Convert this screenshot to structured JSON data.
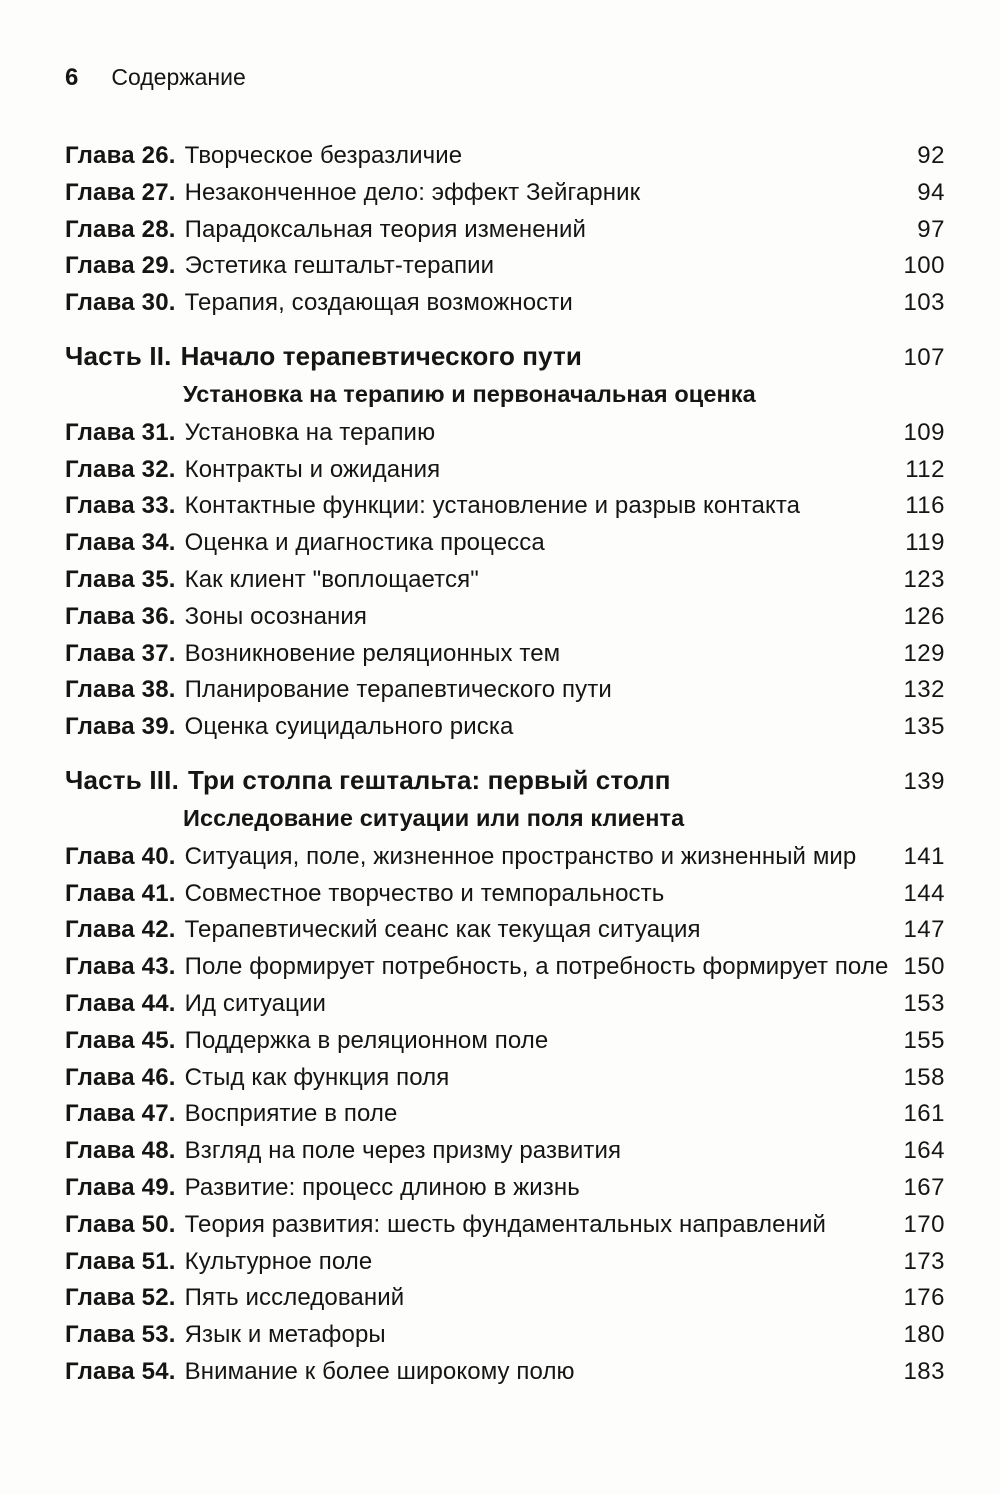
{
  "header": {
    "page_number": "6",
    "title": "Содержание"
  },
  "toc": {
    "entries": [
      {
        "type": "chapter",
        "label": "Глава 26.",
        "title": "Творческое безразличие",
        "page": "92"
      },
      {
        "type": "chapter",
        "label": "Глава 27.",
        "title": "Незаконченное дело: эффект Зейгарник",
        "page": "94"
      },
      {
        "type": "chapter",
        "label": "Глава 28.",
        "title": "Парадоксальная теория изменений",
        "page": "97"
      },
      {
        "type": "chapter",
        "label": "Глава 29.",
        "title": "Эстетика гештальт-терапии",
        "page": "100"
      },
      {
        "type": "chapter",
        "label": "Глава 30.",
        "title": "Терапия, создающая возможности",
        "page": "103"
      },
      {
        "type": "part",
        "label": "Часть II.",
        "title": "Начало терапевтического пути",
        "subtitle": "Установка на терапию и первоначальная оценка",
        "page": "107"
      },
      {
        "type": "chapter",
        "label": "Глава 31.",
        "title": "Установка на терапию",
        "page": "109"
      },
      {
        "type": "chapter",
        "label": "Глава 32.",
        "title": "Контракты и ожидания",
        "page": "112"
      },
      {
        "type": "chapter",
        "label": "Глава 33.",
        "title": "Контактные функции: установление и разрыв контакта",
        "page": "116"
      },
      {
        "type": "chapter",
        "label": "Глава 34.",
        "title": "Оценка и диагностика процесса",
        "page": "119"
      },
      {
        "type": "chapter",
        "label": "Глава 35.",
        "title": "Как клиент \"воплощается\"",
        "page": "123"
      },
      {
        "type": "chapter",
        "label": "Глава 36.",
        "title": "Зоны осознания",
        "page": "126"
      },
      {
        "type": "chapter",
        "label": "Глава 37.",
        "title": "Возникновение реляционных тем",
        "page": "129"
      },
      {
        "type": "chapter",
        "label": "Глава 38.",
        "title": "Планирование терапевтического пути",
        "page": "132"
      },
      {
        "type": "chapter",
        "label": "Глава 39.",
        "title": "Оценка суицидального риска",
        "page": "135"
      },
      {
        "type": "part",
        "label": "Часть III.",
        "title": "Три столпа гештальта: первый столп",
        "subtitle": "Исследование ситуации или поля клиента",
        "page": "139"
      },
      {
        "type": "chapter",
        "label": "Глава 40.",
        "title": "Ситуация, поле, жизненное пространство и жизненный мир",
        "page": "141"
      },
      {
        "type": "chapter",
        "label": "Глава 41.",
        "title": "Совместное творчество и темпоральность",
        "page": "144"
      },
      {
        "type": "chapter",
        "label": "Глава 42.",
        "title": "Терапевтический сеанс как текущая ситуация",
        "page": "147"
      },
      {
        "type": "chapter",
        "label": "Глава 43.",
        "title": "Поле формирует потребность, а потребность формирует поле",
        "page": "150"
      },
      {
        "type": "chapter",
        "label": "Глава 44.",
        "title": "Ид ситуации",
        "page": "153"
      },
      {
        "type": "chapter",
        "label": "Глава 45.",
        "title": "Поддержка в реляционном поле",
        "page": "155"
      },
      {
        "type": "chapter",
        "label": "Глава 46.",
        "title": "Стыд как функция поля",
        "page": "158"
      },
      {
        "type": "chapter",
        "label": "Глава 47.",
        "title": "Восприятие в поле",
        "page": "161"
      },
      {
        "type": "chapter",
        "label": "Глава 48.",
        "title": "Взгляд на поле через призму развития",
        "page": "164"
      },
      {
        "type": "chapter",
        "label": "Глава 49.",
        "title": "Развитие: процесс длиною в жизнь",
        "page": "167"
      },
      {
        "type": "chapter",
        "label": "Глава 50.",
        "title": "Теория развития: шесть фундаментальных направлений",
        "page": "170"
      },
      {
        "type": "chapter",
        "label": "Глава 51.",
        "title": "Культурное поле",
        "page": "173"
      },
      {
        "type": "chapter",
        "label": "Глава 52.",
        "title": "Пять исследований",
        "page": "176"
      },
      {
        "type": "chapter",
        "label": "Глава 53.",
        "title": "Язык и метафоры",
        "page": "180"
      },
      {
        "type": "chapter",
        "label": "Глава 54.",
        "title": "Внимание к более широкому полю",
        "page": "183"
      }
    ]
  }
}
